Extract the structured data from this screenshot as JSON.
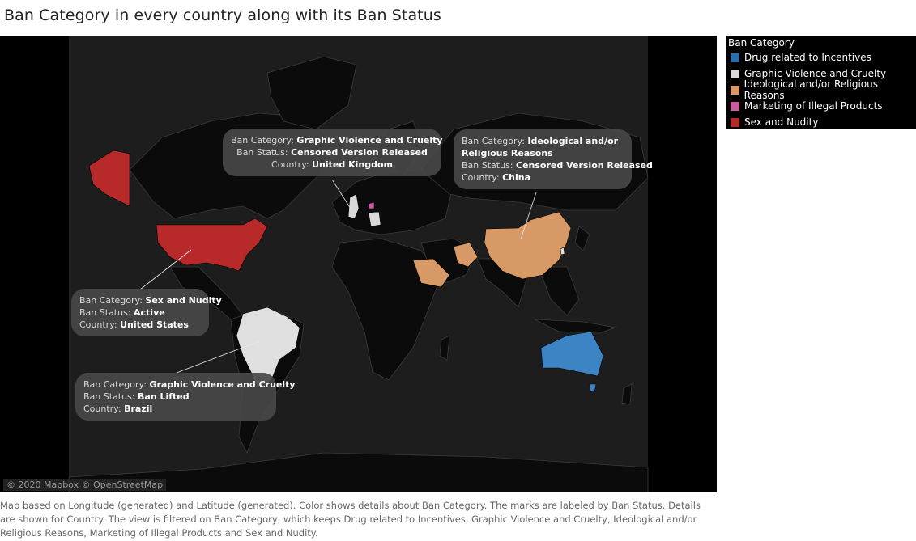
{
  "title": "Ban Category in every country along with its Ban Status",
  "attribution": "© 2020 Mapbox © OpenStreetMap",
  "labels": {
    "ban_category": "Ban Category:",
    "ban_status": "Ban Status:",
    "country": "Country:"
  },
  "legend": {
    "title": "Ban Category",
    "items": [
      {
        "label": "Drug related to Incentives",
        "color": "#2d6fab"
      },
      {
        "label": "Graphic Violence and Cruelty",
        "color": "#d9d9d9"
      },
      {
        "label": "Ideological and/or Religious Reasons",
        "color": "#d79a66"
      },
      {
        "label": "Marketing of Illegal Products",
        "color": "#cc5aa2"
      },
      {
        "label": "Sex and Nudity",
        "color": "#b82a2a"
      }
    ]
  },
  "tooltips": {
    "uk": {
      "category": "Graphic Violence and Cruelty",
      "status": "Censored Version Released",
      "country": "United Kingdom"
    },
    "china": {
      "category_line1": "Ideological and/or",
      "category_line2": "Religious Reasons",
      "status": "Censored Version Released",
      "country": "China"
    },
    "usa": {
      "category": "Sex and Nudity",
      "status": "Active",
      "country": "United States"
    },
    "brazil": {
      "category": "Graphic Violence and Cruelty",
      "status": "Ban Lifted",
      "country": "Brazil"
    }
  },
  "country_colors": {
    "usa": "#b82a2a",
    "alaska": "#b82a2a",
    "brazil": "#e0e0e0",
    "uk": "#d9d9d9",
    "germany": "#d9d9d9",
    "china": "#d79a66",
    "saudi": "#d79a66",
    "iran": "#d79a66",
    "australia": "#3d84c4",
    "netherlands": "#cc5aa2"
  },
  "caption": "Map based on Longitude (generated) and Latitude (generated).  Color shows details about Ban Category.  The marks are labeled by Ban Status.  Details are shown for Country. The view is filtered on Ban Category, which keeps Drug related to Incentives, Graphic Violence and Cruelty, Ideological and/or Religious Reasons, Marketing of Illegal Products and Sex and Nudity."
}
